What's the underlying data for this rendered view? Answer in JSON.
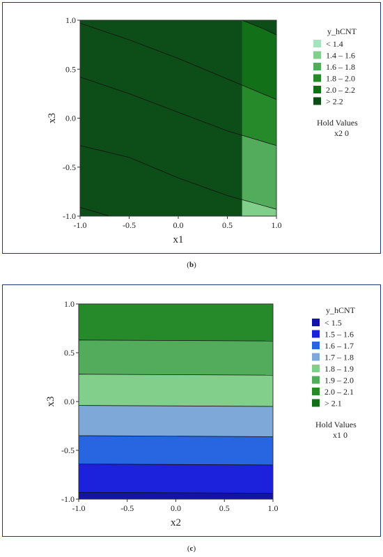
{
  "captions": {
    "b": "b",
    "c": "c"
  },
  "chart_data": [
    {
      "type": "contour",
      "panel": "b",
      "xlabel": "x1",
      "ylabel": "x3",
      "xlim": [
        -1.0,
        1.0
      ],
      "ylim": [
        -1.0,
        1.0
      ],
      "xticks": [
        "-1.0",
        "-0.5",
        "0.0",
        "0.5",
        "1.0"
      ],
      "yticks": [
        "-1.0",
        "-0.5",
        "0.0",
        "0.5",
        "1.0"
      ],
      "legend_title": "y_hCNT",
      "legend_position": "right",
      "legend": [
        {
          "label": "<  1.4",
          "color": "#a6e2bb"
        },
        {
          "label": "1.4  –  1.6",
          "color": "#82cf8b"
        },
        {
          "label": "1.6  –  1.8",
          "color": "#52ac5b"
        },
        {
          "label": "1.8  –  2.0",
          "color": "#268a2b"
        },
        {
          "label": "2.0  –  2.2",
          "color": "#117018"
        },
        {
          "label": ">  2.2",
          "color": "#0c4d18"
        }
      ],
      "hold_values": {
        "title": "Hold Values",
        "text": "x2   0"
      },
      "contour_levels": [
        {
          "level": 1.4,
          "points": [
            [
              -1.0,
              -0.91
            ],
            [
              -0.7,
              -1.0
            ]
          ]
        },
        {
          "level": 1.6,
          "points": [
            [
              -1.0,
              -0.28
            ],
            [
              -0.5,
              -0.4
            ],
            [
              0.0,
              -0.61
            ],
            [
              0.5,
              -0.79
            ],
            [
              1.0,
              -0.93
            ]
          ]
        },
        {
          "level": 1.8,
          "points": [
            [
              -1.0,
              0.42
            ],
            [
              -0.5,
              0.25
            ],
            [
              0.0,
              0.06
            ],
            [
              0.5,
              -0.13
            ],
            [
              1.0,
              -0.28
            ]
          ]
        },
        {
          "level": 2.0,
          "points": [
            [
              -1.0,
              0.97
            ],
            [
              -0.5,
              0.8
            ],
            [
              0.0,
              0.61
            ],
            [
              0.5,
              0.4
            ],
            [
              1.0,
              0.19
            ]
          ]
        },
        {
          "level": 2.2,
          "points": [
            [
              0.65,
              1.0
            ],
            [
              0.85,
              0.92
            ],
            [
              1.0,
              0.85
            ]
          ]
        }
      ]
    },
    {
      "type": "contour",
      "panel": "c",
      "xlabel": "x2",
      "ylabel": "x3",
      "xlim": [
        -1.0,
        1.0
      ],
      "ylim": [
        -1.0,
        1.0
      ],
      "xticks": [
        "-1.0",
        "-0.5",
        "0.0",
        "0.5",
        "1.0"
      ],
      "yticks": [
        "-1.0",
        "-0.5",
        "0.0",
        "0.5",
        "1.0"
      ],
      "legend_title": "y_hCNT",
      "legend_position": "right",
      "legend": [
        {
          "label": "<  1.5",
          "color": "#1414a2"
        },
        {
          "label": "1.5  –  1.6",
          "color": "#1c22dc"
        },
        {
          "label": "1.6  –  1.7",
          "color": "#2766e0"
        },
        {
          "label": "1.7  –  1.8",
          "color": "#7ea8d8"
        },
        {
          "label": "1.8  –  1.9",
          "color": "#82cf8b"
        },
        {
          "label": "1.9  –  2.0",
          "color": "#52ac5b"
        },
        {
          "label": "2.0  –  2.1",
          "color": "#268a2b"
        },
        {
          "label": ">  2.1",
          "color": "#117018"
        }
      ],
      "hold_values": {
        "title": "Hold Values",
        "text": "x1   0"
      },
      "contour_levels": [
        {
          "level": 1.5,
          "points": [
            [
              -1.0,
              -0.93
            ],
            [
              1.0,
              -0.94
            ]
          ]
        },
        {
          "level": 1.6,
          "points": [
            [
              -1.0,
              -0.64
            ],
            [
              1.0,
              -0.65
            ]
          ]
        },
        {
          "level": 1.7,
          "points": [
            [
              -1.0,
              -0.35
            ],
            [
              1.0,
              -0.36
            ]
          ]
        },
        {
          "level": 1.8,
          "points": [
            [
              -1.0,
              -0.04
            ],
            [
              1.0,
              -0.05
            ]
          ]
        },
        {
          "level": 1.9,
          "points": [
            [
              -1.0,
              0.28
            ],
            [
              1.0,
              0.27
            ]
          ]
        },
        {
          "level": 2.0,
          "points": [
            [
              -1.0,
              0.63
            ],
            [
              1.0,
              0.62
            ]
          ]
        },
        {
          "level": 2.1,
          "points": [
            [
              -1.0,
              1.0
            ],
            [
              1.0,
              1.0
            ]
          ]
        }
      ]
    }
  ]
}
